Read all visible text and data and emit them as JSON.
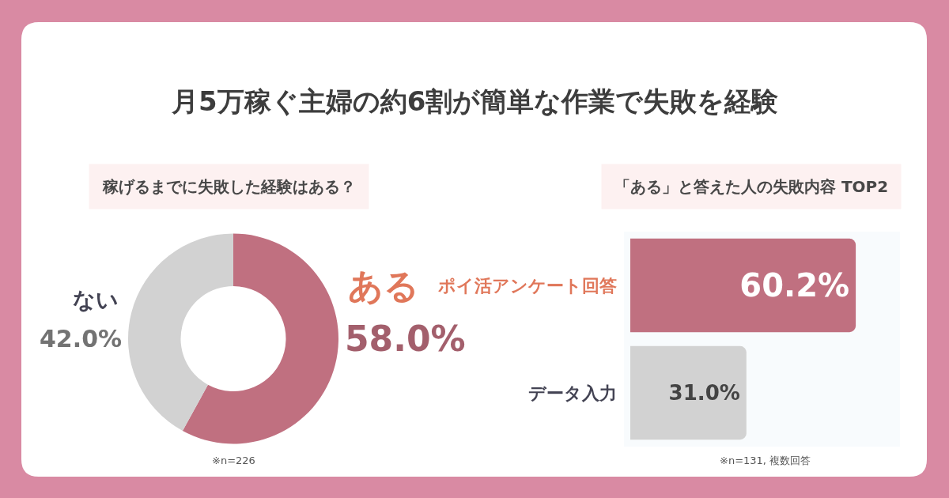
{
  "chart_data": [
    {
      "type": "donut",
      "title": "月5万稼ぐ主婦の約6割が簡単な作業で失敗を経験",
      "subtitle": "稼げるまでに失敗した経験はある？",
      "categories": [
        "ある",
        "ない"
      ],
      "values": [
        58.0,
        42.0
      ],
      "colors": [
        "#c07080",
        "#d2d2d2"
      ],
      "value_labels": [
        "58.0%",
        "42.0%"
      ],
      "annotations": [
        "※n=226"
      ]
    },
    {
      "type": "bar",
      "orientation": "horizontal",
      "title": "「ある」と答えた人の失敗内容 TOP2",
      "categories": [
        "ポイ活アンケート回答",
        "データ入力"
      ],
      "values": [
        60.2,
        31.0
      ],
      "colors": [
        "#c07080",
        "#d2d2d2"
      ],
      "value_labels": [
        "60.2%",
        "31.0%"
      ],
      "xlim": [
        0,
        72
      ],
      "tick_labels": "y",
      "annotations": [
        "※n=131, 複数回答"
      ]
    }
  ]
}
